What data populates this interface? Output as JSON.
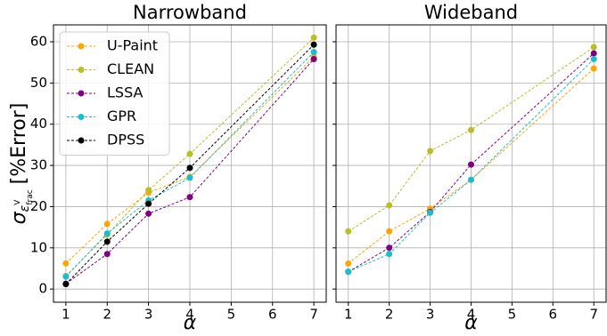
{
  "chart_data": [
    {
      "type": "line",
      "title": "Narrowband",
      "ylabel": {
        "symbol": "σ",
        "sub": "ε",
        "sub_sup": "V",
        "sub_sub": "frac",
        "unit": "[%Error]"
      },
      "xlabel": "α",
      "x": [
        1,
        2,
        3,
        4,
        7
      ],
      "series": [
        {
          "name": "U-Paint",
          "color": "#ffa500",
          "values": [
            6.2,
            15.8,
            23.4,
            27.2,
            56.3
          ]
        },
        {
          "name": "CLEAN",
          "color": "#bcbd22",
          "values": [
            3.2,
            13.2,
            24.0,
            32.8,
            61.0
          ]
        },
        {
          "name": "LSSA",
          "color": "#800080",
          "values": [
            1.3,
            8.5,
            18.3,
            22.3,
            55.8
          ]
        },
        {
          "name": "GPR",
          "color": "#17becf",
          "values": [
            3.0,
            13.5,
            21.5,
            27.0,
            57.5
          ]
        },
        {
          "name": "DPSS",
          "color": "#000000",
          "values": [
            1.2,
            11.5,
            20.7,
            29.4,
            59.3
          ]
        }
      ],
      "xlim": [
        0.7,
        7.3
      ],
      "ylim": [
        -3.2,
        64.1
      ],
      "xticks": [
        1,
        2,
        3,
        4,
        5,
        6,
        7
      ],
      "yticks": [
        0,
        10,
        20,
        30,
        40,
        50,
        60
      ],
      "ytick_labels": true,
      "grid": true,
      "legend": "upper left"
    },
    {
      "type": "line",
      "title": "Wideband",
      "xlabel": "α",
      "x": [
        1,
        2,
        3,
        4,
        7
      ],
      "series": [
        {
          "color": "#ffa500",
          "values": [
            6.2,
            14.0,
            19.5,
            26.5,
            53.5
          ]
        },
        {
          "color": "#bcbd22",
          "values": [
            14.0,
            20.3,
            33.5,
            38.6,
            58.7
          ]
        },
        {
          "color": "#800080",
          "values": [
            4.2,
            10.0,
            18.7,
            30.2,
            57.2
          ]
        },
        {
          "color": "#17becf",
          "values": [
            4.2,
            8.5,
            18.5,
            26.5,
            55.8
          ]
        }
      ],
      "xlim": [
        0.7,
        7.3
      ],
      "ylim": [
        -3.2,
        64.1
      ],
      "xticks": [
        1,
        2,
        3,
        4,
        5,
        6,
        7
      ],
      "yticks": [
        0,
        10,
        20,
        30,
        40,
        50,
        60
      ],
      "ytick_labels": false,
      "grid": true
    }
  ]
}
